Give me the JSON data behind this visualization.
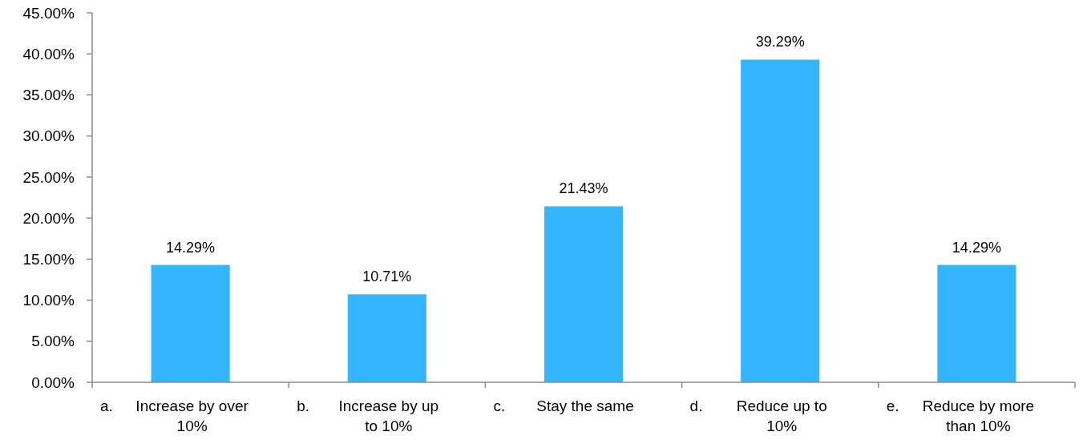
{
  "chart_data": {
    "type": "bar",
    "categories": [
      "a. Increase by over 10%",
      "b. Increase by up to 10%",
      "c. Stay the same",
      "d. Reduce up to 10%",
      "e. Reduce by more than 10%"
    ],
    "values": [
      14.29,
      10.71,
      21.43,
      39.29,
      14.29
    ],
    "value_labels": [
      "14.29%",
      "10.71%",
      "21.43%",
      "39.29%",
      "14.29%"
    ],
    "color": "#33b5ff",
    "ylim": [
      0,
      45
    ],
    "yticks": [
      {
        "value": 0,
        "label": "0.00%"
      },
      {
        "value": 5,
        "label": "5.00%"
      },
      {
        "value": 10,
        "label": "10.00%"
      },
      {
        "value": 15,
        "label": "15.00%"
      },
      {
        "value": 20,
        "label": "20.00%"
      },
      {
        "value": 25,
        "label": "25.00%"
      },
      {
        "value": 30,
        "label": "30.00%"
      },
      {
        "value": 35,
        "label": "35.00%"
      },
      {
        "value": 40,
        "label": "40.00%"
      },
      {
        "value": 45,
        "label": "45.00%"
      }
    ]
  }
}
